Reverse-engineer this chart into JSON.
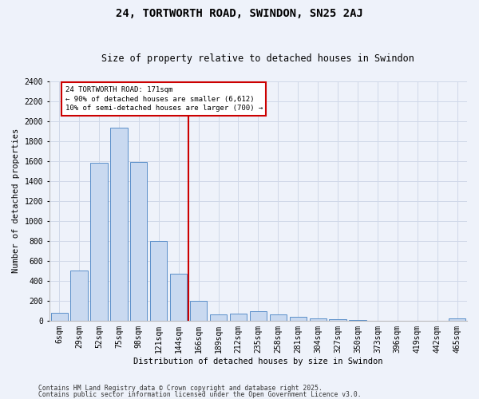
{
  "title": "24, TORTWORTH ROAD, SWINDON, SN25 2AJ",
  "subtitle": "Size of property relative to detached houses in Swindon",
  "xlabel": "Distribution of detached houses by size in Swindon",
  "ylabel": "Number of detached properties",
  "footer1": "Contains HM Land Registry data © Crown copyright and database right 2025.",
  "footer2": "Contains public sector information licensed under the Open Government Licence v3.0.",
  "categories": [
    "6sqm",
    "29sqm",
    "52sqm",
    "75sqm",
    "98sqm",
    "121sqm",
    "144sqm",
    "166sqm",
    "189sqm",
    "212sqm",
    "235sqm",
    "258sqm",
    "281sqm",
    "304sqm",
    "327sqm",
    "350sqm",
    "373sqm",
    "396sqm",
    "419sqm",
    "442sqm",
    "465sqm"
  ],
  "values": [
    75,
    500,
    1580,
    1930,
    1590,
    800,
    470,
    195,
    65,
    70,
    95,
    60,
    40,
    25,
    15,
    5,
    0,
    0,
    0,
    0,
    25
  ],
  "bar_color": "#c9d9f0",
  "bar_edge_color": "#5b8fc9",
  "grid_color": "#d0d8e8",
  "bg_color": "#eef2fa",
  "property_line_index": 7,
  "annotation_title": "24 TORTWORTH ROAD: 171sqm",
  "annotation_line1": "← 90% of detached houses are smaller (6,612)",
  "annotation_line2": "10% of semi-detached houses are larger (700) →",
  "annotation_box_color": "#ffffff",
  "annotation_box_edge": "#cc0000",
  "property_line_color": "#cc0000",
  "ylim": [
    0,
    2400
  ],
  "yticks": [
    0,
    200,
    400,
    600,
    800,
    1000,
    1200,
    1400,
    1600,
    1800,
    2000,
    2200,
    2400
  ],
  "title_fontsize": 10,
  "subtitle_fontsize": 8.5,
  "axis_label_fontsize": 7.5,
  "tick_fontsize": 7,
  "footer_fontsize": 5.8
}
